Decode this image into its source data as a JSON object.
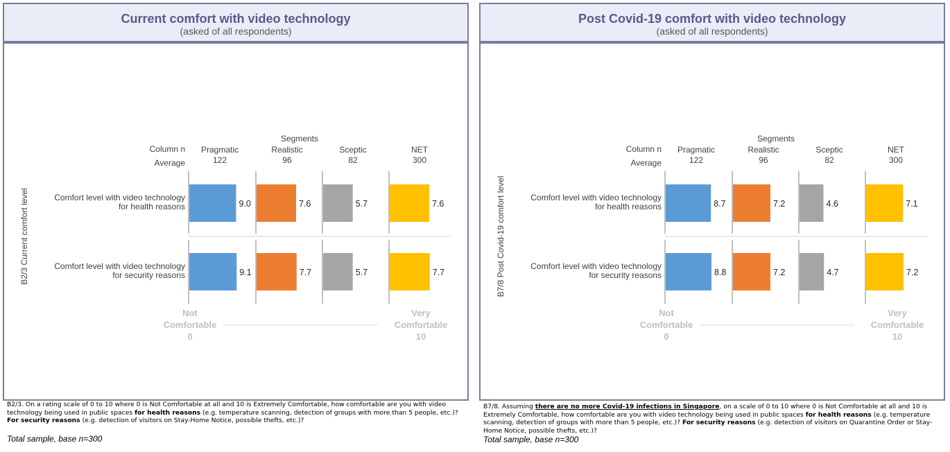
{
  "panels": [
    {
      "id": "current",
      "title": "Current comfort with video technology",
      "subtitle": "(asked of all respondents)",
      "y_axis_label": "B2/3 Current comfort level",
      "question": {
        "code": "B2/3.",
        "parts": [
          {
            "text": " On a rating scale of 0 to 10 where 0 is Not Comfortable at all and 10 is Extremely Comfortable, how comfortable are you with video technology being used in public spaces ",
            "style": "normal"
          },
          {
            "text": "for health reasons",
            "style": "bold"
          },
          {
            "text": " (e.g. temperature scanning, detection of groups with more than 5 people, etc.)? ",
            "style": "normal"
          },
          {
            "text": "For security reasons",
            "style": "bold"
          },
          {
            "text": " (e.g. detection of visitors on Stay-Home Notice, possible thefts, etc.)?",
            "style": "normal"
          }
        ]
      },
      "base_note": "Total sample, base n=300"
    },
    {
      "id": "post_covid",
      "title": "Post Covid-19 comfort with video technology",
      "subtitle": "(asked of all respondents)",
      "y_axis_label": "B7/8 Post Covid-19 comfort level",
      "question": {
        "code": "B7/8.",
        "parts": [
          {
            "text": " Assuming ",
            "style": "normal"
          },
          {
            "text": "there are no more Covid-19 infections in Singapore",
            "style": "bold-underline"
          },
          {
            "text": ", on a scale of 0 to 10 where 0 is Not Comfortable at all and 10 is Extremely Comfortable, how comfortable are you with video technology being used in public spaces ",
            "style": "normal"
          },
          {
            "text": "for health reasons",
            "style": "bold"
          },
          {
            "text": " (e.g. temperature scanning, detection of groups with more than 5 people, etc.)? ",
            "style": "normal"
          },
          {
            "text": "For security reasons",
            "style": "bold"
          },
          {
            "text": " (e.g. detection of visitors on Quarantine Order or Stay-Home Notice, possible thefts, etc.)?",
            "style": "normal"
          }
        ]
      },
      "base_note": "Total sample, base n=300"
    }
  ],
  "chart_data": [
    {
      "type": "bar",
      "orientation": "horizontal",
      "segments_header": "Segments",
      "row_header_1": "Column n",
      "row_header_2": "Average",
      "series": [
        {
          "name": "Pragmatic",
          "n": "122",
          "color": "#5b9bd5",
          "values": [
            9.0,
            9.1
          ]
        },
        {
          "name": "Realistic",
          "n": "96",
          "color": "#ed7d31",
          "values": [
            7.6,
            7.7
          ]
        },
        {
          "name": "Sceptic",
          "n": "82",
          "color": "#a5a5a5",
          "values": [
            5.7,
            5.7
          ]
        },
        {
          "name": "NET",
          "n": "300",
          "color": "#ffc000",
          "values": [
            7.6,
            7.7
          ]
        }
      ],
      "categories": [
        [
          "Comfort level with video technology",
          "for health reasons"
        ],
        [
          "Comfort level with video technology",
          "for security reasons"
        ]
      ],
      "value_labels": [
        [
          "9.0",
          "9.1"
        ],
        [
          "7.6",
          "7.7"
        ],
        [
          "5.7",
          "5.7"
        ],
        [
          "7.6",
          "7.7"
        ]
      ],
      "scale": {
        "min": 0,
        "max": 10,
        "min_label": [
          "Not",
          "Comfortable",
          "0"
        ],
        "max_label": [
          "Very",
          "Comfortable",
          "10"
        ]
      }
    },
    {
      "type": "bar",
      "orientation": "horizontal",
      "segments_header": "Segments",
      "row_header_1": "Column n",
      "row_header_2": "Average",
      "series": [
        {
          "name": "Pragmatic",
          "n": "122",
          "color": "#5b9bd5",
          "values": [
            8.7,
            8.8
          ]
        },
        {
          "name": "Realistic",
          "n": "96",
          "color": "#ed7d31",
          "values": [
            7.2,
            7.2
          ]
        },
        {
          "name": "Sceptic",
          "n": "82",
          "color": "#a5a5a5",
          "values": [
            4.6,
            4.7
          ]
        },
        {
          "name": "NET",
          "n": "300",
          "color": "#ffc000",
          "values": [
            7.1,
            7.2
          ]
        }
      ],
      "categories": [
        [
          "Comfort level with video technology",
          "for health reasons"
        ],
        [
          "Comfort level with video technology",
          "for security reasons"
        ]
      ],
      "value_labels": [
        [
          "8.7",
          "8.8"
        ],
        [
          "7.2",
          "7.2"
        ],
        [
          "4.6",
          "4.7"
        ],
        [
          "7.1",
          "7.2"
        ]
      ],
      "scale": {
        "min": 0,
        "max": 10,
        "min_label": [
          "Not",
          "Comfortable",
          "0"
        ],
        "max_label": [
          "Very",
          "Comfortable",
          "10"
        ]
      }
    }
  ]
}
